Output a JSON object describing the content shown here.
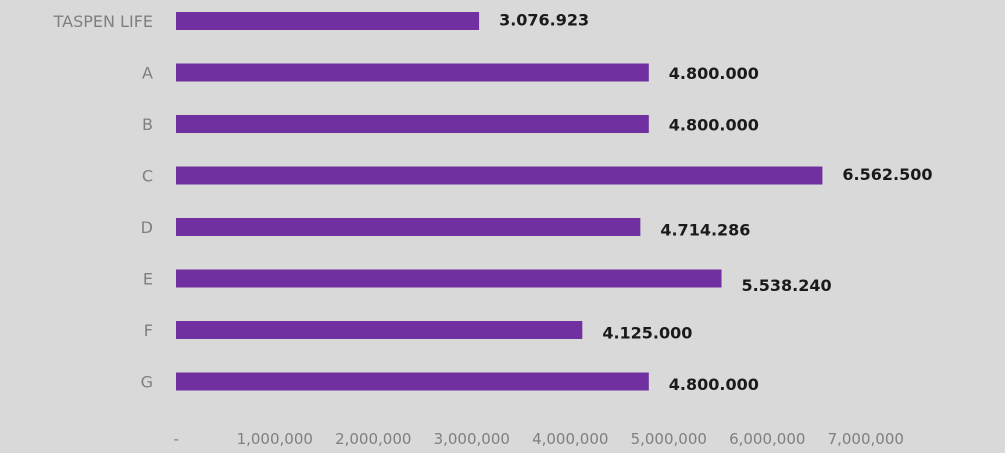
{
  "chart_data": {
    "type": "bar",
    "orientation": "horizontal",
    "categories": [
      "TASPEN LIFE",
      "A",
      "B",
      "C",
      "D",
      "E",
      "F",
      "G"
    ],
    "values": [
      3076923,
      4800000,
      4800000,
      6562500,
      4714286,
      5538240,
      4125000,
      4800000
    ],
    "value_labels": [
      "3.076.923",
      "4.800.000",
      "4.800.000",
      "6.562.500",
      "4.714.286",
      "5.538.240",
      "4.125.000",
      "4.800.000"
    ],
    "xlim": [
      0,
      7000000
    ],
    "x_ticks": [
      0,
      1000000,
      2000000,
      3000000,
      4000000,
      5000000,
      6000000,
      7000000
    ],
    "x_tick_labels": [
      "-",
      "1,000,000",
      "2,000,000",
      "3,000,000",
      "4,000,000",
      "5,000,000",
      "6,000,000",
      "7,000,000"
    ],
    "title": "",
    "xlabel": "",
    "ylabel": "",
    "grid": false,
    "legend": "none",
    "bar_color": "#7030a0",
    "background_color": "#d9d9d9"
  }
}
